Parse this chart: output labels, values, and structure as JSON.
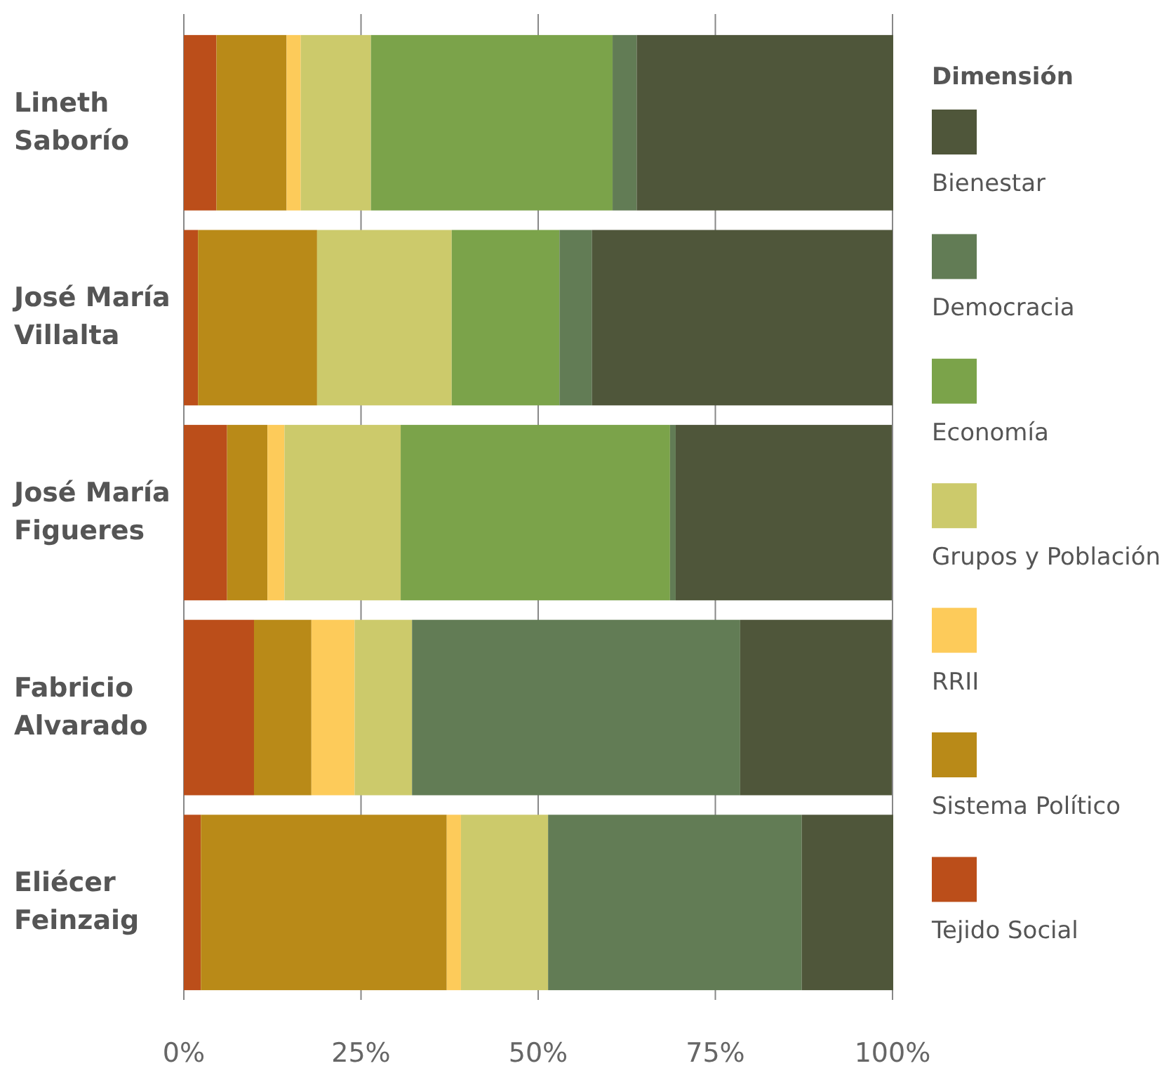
{
  "chart_data": {
    "type": "bar",
    "orientation": "horizontal",
    "stacked": true,
    "legend_title": "Dimensión",
    "legend": "right",
    "grid": "x",
    "categories": [
      "Lineth Saborío",
      "José María Villalta",
      "José María Figueres",
      "Fabricio Alvarado",
      "Eliécer Feinzaig"
    ],
    "xlim": [
      0,
      100
    ],
    "xticks": [
      {
        "value": 0,
        "label": "0%"
      },
      {
        "value": 25,
        "label": "25%"
      },
      {
        "value": 50,
        "label": "50%"
      },
      {
        "value": 75,
        "label": "75%"
      },
      {
        "value": 100,
        "label": "100%"
      }
    ],
    "series": [
      {
        "name": "Tejido Social",
        "color": "#bb4e1a",
        "values": [
          4.6,
          2,
          6.1,
          9.9,
          2.4
        ]
      },
      {
        "name": "Sistema Político",
        "color": "#b98a18",
        "values": [
          9.9,
          16.8,
          5.7,
          8.1,
          34.7
        ]
      },
      {
        "name": "RRII",
        "color": "#fdcb5a",
        "values": [
          2,
          0,
          2.4,
          6.1,
          2
        ]
      },
      {
        "name": "Grupos y Población",
        "color": "#ccca6b",
        "values": [
          9.9,
          19,
          16.4,
          8.1,
          12.3
        ]
      },
      {
        "name": "Economía",
        "color": "#7ba34a",
        "values": [
          34.1,
          15.2,
          38,
          0,
          0
        ]
      },
      {
        "name": "Democracia",
        "color": "#627c55",
        "values": [
          3.4,
          4.6,
          0.8,
          46.3,
          35.8
        ]
      },
      {
        "name": "Bienestar",
        "color": "#4f563a",
        "values": [
          36.2,
          42.4,
          30.5,
          21.4,
          12.9
        ]
      }
    ]
  }
}
